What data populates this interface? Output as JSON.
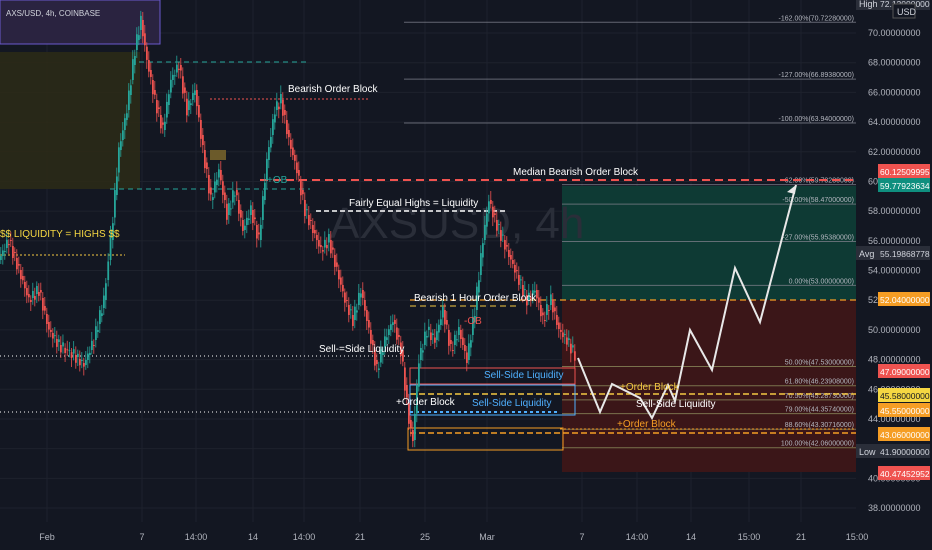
{
  "header": {
    "symbol": "AXS/USD, 4h, COINBASE"
  },
  "watermark": "AXSUSD, 4h",
  "currency": "USD",
  "colors": {
    "bg": "#131722",
    "up": "#26a69a",
    "down": "#ef5350",
    "grid": "#1e222d",
    "white": "#ffffff",
    "yellow": "#f5c842",
    "orange": "#f59d24",
    "red": "#ef5350",
    "blue": "#2962ff",
    "lightblue": "#4fb0ff",
    "green_zone": "#0e3a34",
    "red_zone": "#3b1618"
  },
  "chart_data": {
    "type": "candlestick",
    "symbol": "AXS/USD",
    "timeframe": "4h",
    "exchange": "COINBASE",
    "ylim": [
      36.2,
      72.6
    ],
    "y_ticks": [
      38,
      40,
      42,
      44,
      46,
      48,
      50,
      52,
      54,
      56,
      58,
      60,
      62,
      64,
      66,
      68,
      70
    ],
    "y_tick_labels": [
      "38.00000000",
      "40.00000000",
      "42.00000000",
      "44.00000000",
      "46.00000000",
      "48.00000000",
      "50.00000000",
      "52.00000000",
      "54.00000000",
      "56.00000000",
      "58.00000000",
      "60.00000000",
      "62.00000000",
      "64.00000000",
      "66.00000000",
      "68.00000000",
      "70.00000000"
    ],
    "x_ticks": [
      "Feb",
      "7",
      "14:00",
      "14",
      "14:00",
      "21",
      "25",
      "Mar",
      "7",
      "14:00",
      "14",
      "15:00",
      "21",
      "15:00"
    ],
    "price_marks": [
      {
        "label": "High",
        "value": "72.12000000",
        "color": "#2a2e39",
        "text": "#d1d4dc"
      },
      {
        "value": "60.12509995",
        "color": "#ef5350"
      },
      {
        "value": "59.77923634",
        "color": "#0f8f7f"
      },
      {
        "label": "Avg",
        "value": "55.19868778",
        "color": "#2a2e39",
        "text": "#d1d4dc"
      },
      {
        "value": "52.04000000",
        "color": "#f59d24"
      },
      {
        "value": "47.09000000",
        "color": "#ef5350"
      },
      {
        "value": "45.58000000",
        "color": "#f5d742",
        "text": "#131722"
      },
      {
        "value": "45.55000000",
        "color": "#f59d24"
      },
      {
        "value": "43.06000000",
        "color": "#f59d24"
      },
      {
        "label": "Low",
        "value": "41.90000000",
        "color": "#2a2e39",
        "text": "#d1d4dc"
      },
      {
        "value": "40.47452952",
        "color": "#ef5350"
      }
    ],
    "fib_levels": [
      {
        "label": "-162.00%(70.72280000)",
        "price": 70.7228
      },
      {
        "label": "-127.00%(66.89380000)",
        "price": 66.8938
      },
      {
        "label": "-100.00%(63.94000000)",
        "price": 63.94
      },
      {
        "label": "-62.00%(59.78280000)",
        "price": 59.7828
      },
      {
        "label": "-50.00%(58.47000000)",
        "price": 58.47
      },
      {
        "label": "-27.00%(55.95380000)",
        "price": 55.9538
      },
      {
        "label": "0.00%(53.00000000)",
        "price": 53.0
      },
      {
        "label": "50.00%(47.53000000)",
        "price": 47.53
      },
      {
        "label": "61.80%(46.23908000)",
        "price": 46.23908
      },
      {
        "label": "70.50%(45.28730000)",
        "price": 45.2873
      },
      {
        "label": "79.00%(44.35740000)",
        "price": 44.3574
      },
      {
        "label": "88.60%(43.30716000)",
        "price": 43.30716
      },
      {
        "label": "100.00%(42.06000000)",
        "price": 42.06
      }
    ],
    "annotations": [
      {
        "text": "Bearish Order Block",
        "color": "#ffffff"
      },
      {
        "text": "Median Bearish Order Block",
        "color": "#ffffff"
      },
      {
        "text": "Fairly Equal Highs = Liquidity",
        "color": "#ffffff"
      },
      {
        "text": "$$ LIQUIDITY = HIGHS $$",
        "color": "#f5d742"
      },
      {
        "text": "Bearish 1 Hour Order Block",
        "color": "#ffffff"
      },
      {
        "text": "Sell-=Side Liquidity",
        "color": "#ffffff"
      },
      {
        "text": "Sell-Side Liquidity",
        "color": "#4fb0ff"
      },
      {
        "text": "Sell-Side Liquidity",
        "color": "#4fb0ff"
      },
      {
        "text": "+Order Block",
        "color": "#ffffff"
      },
      {
        "text": "+Order Block",
        "color": "#f5c842"
      },
      {
        "text": "Sell-Side Liquidity",
        "color": "#ffffff"
      },
      {
        "text": "+Order Block",
        "color": "#f59d24"
      },
      {
        "text": "+OB",
        "color": "#26a69a"
      },
      {
        "text": "-OB",
        "color": "#ef5350"
      }
    ]
  }
}
